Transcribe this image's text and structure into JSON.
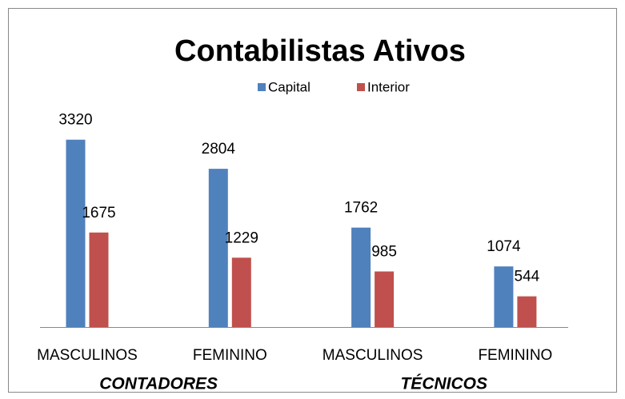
{
  "chart_data": {
    "type": "bar",
    "title": "Contabilistas Ativos",
    "categories": [
      "MASCULINOS",
      "FEMININO",
      "MASCULINOS",
      "FEMININO"
    ],
    "group_labels": [
      "CONTADORES",
      "TÉCNICOS"
    ],
    "series": [
      {
        "name": "Capital",
        "color": "#4f81bd",
        "values": [
          3320,
          2804,
          1762,
          1074
        ]
      },
      {
        "name": "Interior",
        "color": "#c0504d",
        "values": [
          1675,
          1229,
          985,
          544
        ]
      }
    ],
    "ylim": [
      0,
      3500
    ],
    "legend": "top"
  }
}
